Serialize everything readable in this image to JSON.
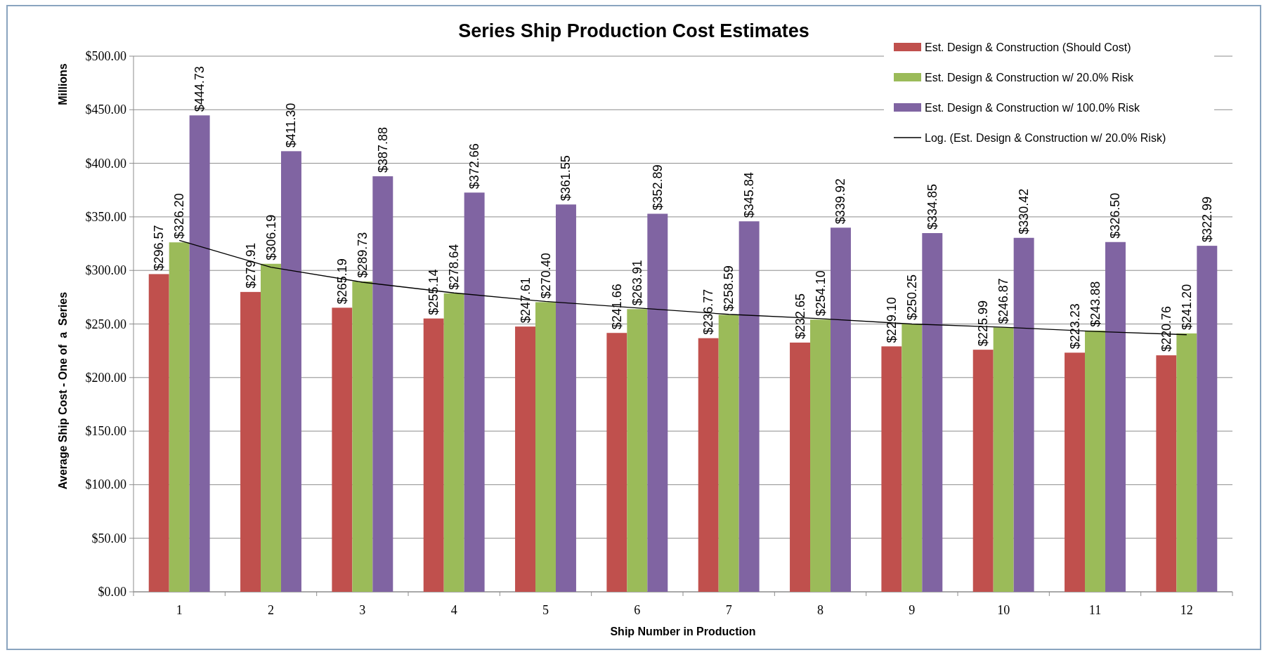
{
  "chart_data": {
    "type": "bar",
    "title": "Series Ship Production Cost Estimates",
    "xlabel": "Ship Number in Production",
    "ylabel": "Average Ship Cost - One of  a  Series",
    "annotations": [
      "Millions"
    ],
    "categories": [
      "1",
      "2",
      "3",
      "4",
      "5",
      "6",
      "7",
      "8",
      "9",
      "10",
      "11",
      "12"
    ],
    "series": [
      {
        "name": "Est. Design & Construction (Should Cost)",
        "color": "#c0504d",
        "values": [
          296.57,
          279.91,
          265.19,
          255.14,
          247.61,
          241.66,
          236.77,
          232.65,
          229.1,
          225.99,
          223.23,
          220.76
        ],
        "value_labels": [
          "$296.57",
          "$279.91",
          "$265.19",
          "$255.14",
          "$247.61",
          "$241.66",
          "$236.77",
          "$232.65",
          "$229.10",
          "$225.99",
          "$223.23",
          "$220.76"
        ]
      },
      {
        "name": "Est. Design & Construction w/ 20.0% Risk",
        "color": "#9bbb59",
        "values": [
          326.2,
          306.19,
          289.73,
          278.64,
          270.4,
          263.91,
          258.59,
          254.1,
          250.25,
          246.87,
          243.88,
          241.2
        ],
        "value_labels": [
          "$326.20",
          "$306.19",
          "$289.73",
          "$278.64",
          "$270.40",
          "$263.91",
          "$258.59",
          "$254.10",
          "$250.25",
          "$246.87",
          "$243.88",
          "$241.20"
        ]
      },
      {
        "name": "Est. Design & Construction w/ 100.0% Risk",
        "color": "#8064a2",
        "values": [
          444.73,
          411.3,
          387.88,
          372.66,
          361.55,
          352.89,
          345.84,
          339.92,
          334.85,
          330.42,
          326.5,
          322.99
        ],
        "value_labels": [
          "$444.73",
          "$411.30",
          "$387.88",
          "$372.66",
          "$361.55",
          "$352.89",
          "$345.84",
          "$339.92",
          "$334.85",
          "$330.42",
          "$326.50",
          "$322.99"
        ]
      },
      {
        "name": "Log. (Est. Design & Construction w/ 20.0% Risk)",
        "type": "line",
        "color": "#000000",
        "values": [
          328,
          303,
          289,
          279,
          271,
          265,
          259,
          255,
          250,
          247,
          243,
          240
        ]
      }
    ],
    "ylim": [
      0,
      500
    ],
    "yticks": [
      {
        "value": 0,
        "label": "$0.00"
      },
      {
        "value": 50,
        "label": "$50.00"
      },
      {
        "value": 100,
        "label": "$100.00"
      },
      {
        "value": 150,
        "label": "$150.00"
      },
      {
        "value": 200,
        "label": "$200.00"
      },
      {
        "value": 250,
        "label": "$250.00"
      },
      {
        "value": 300,
        "label": "$300.00"
      },
      {
        "value": 350,
        "label": "$350.00"
      },
      {
        "value": 400,
        "label": "$400.00"
      },
      {
        "value": 450,
        "label": "$450.00"
      },
      {
        "value": 500,
        "label": "$500.00"
      }
    ],
    "grid": "y",
    "legend": "top right"
  }
}
